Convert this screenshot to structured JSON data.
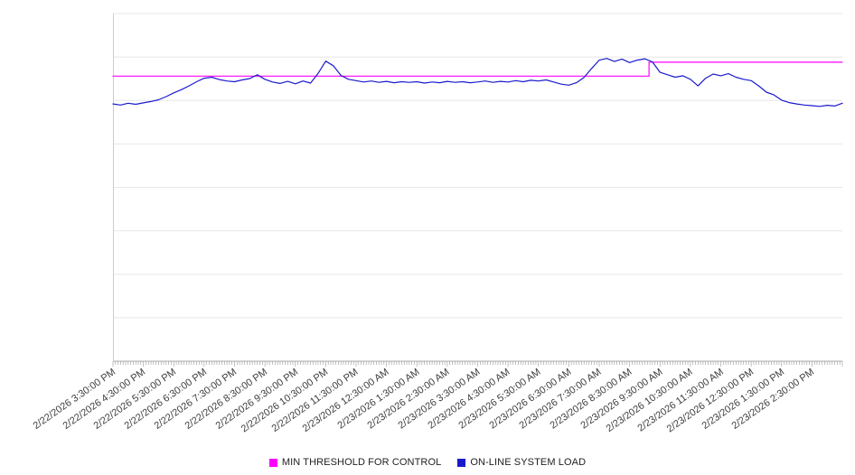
{
  "legend": {
    "items": [
      {
        "label": "MIN THRESHOLD FOR CONTROL",
        "color": "#ff00ff"
      },
      {
        "label": "ON-LINE SYSTEM LOAD",
        "color": "#1a1acd"
      }
    ]
  },
  "chart_data": {
    "type": "line",
    "title": "",
    "xlabel": "",
    "ylabel": "",
    "ylim": [
      0,
      100
    ],
    "x_hours_span": 24,
    "gridlines": 9,
    "grid_color": "#e8e8e8",
    "axis_color": "#aaaaaa",
    "tick_color": "#999999",
    "categories": [
      "2/22/2026 3:30:00 PM",
      "2/22/2026 4:30:00 PM",
      "2/22/2026 5:30:00 PM",
      "2/22/2026 6:30:00 PM",
      "2/22/2026 7:30:00 PM",
      "2/22/2026 8:30:00 PM",
      "2/22/2026 9:30:00 PM",
      "2/22/2026 10:30:00 PM",
      "2/22/2026 11:30:00 PM",
      "2/23/2026 12:30:00 AM",
      "2/23/2026 1:30:00 AM",
      "2/23/2026 2:30:00 AM",
      "2/23/2026 3:30:00 AM",
      "2/23/2026 4:30:00 AM",
      "2/23/2026 5:30:00 AM",
      "2/23/2026 6:30:00 AM",
      "2/23/2026 7:30:00 AM",
      "2/23/2026 8:30:00 AM",
      "2/23/2026 9:30:00 AM",
      "2/23/2026 10:30:00 AM",
      "2/23/2026 11:30:00 AM",
      "2/23/2026 12:30:00 PM",
      "2/23/2026 1:30:00 PM",
      "2/23/2026 2:30:00 PM"
    ],
    "series": [
      {
        "name": "MIN THRESHOLD FOR CONTROL",
        "data_name": "min-threshold-line",
        "color": "#ff00ff",
        "step": true,
        "points": [
          [
            0,
            82
          ],
          [
            17.64,
            82
          ],
          [
            17.64,
            86
          ],
          [
            24,
            86
          ]
        ]
      },
      {
        "name": "ON-LINE SYSTEM LOAD",
        "data_name": "system-load-line",
        "color": "#1a1acd",
        "interval_hours": 0.25,
        "values": [
          74.0,
          73.7,
          74.2,
          73.9,
          74.3,
          74.7,
          75.2,
          76.1,
          77.2,
          78.1,
          79.2,
          80.4,
          81.4,
          81.7,
          81.0,
          80.6,
          80.4,
          80.9,
          81.3,
          82.4,
          81.1,
          80.3,
          79.9,
          80.5,
          79.8,
          80.6,
          80.0,
          82.8,
          86.3,
          85.0,
          82.2,
          81.1,
          80.7,
          80.3,
          80.6,
          80.2,
          80.5,
          80.1,
          80.4,
          80.2,
          80.4,
          80.0,
          80.3,
          80.1,
          80.5,
          80.2,
          80.4,
          80.1,
          80.3,
          80.6,
          80.2,
          80.5,
          80.3,
          80.7,
          80.4,
          80.8,
          80.6,
          80.9,
          80.3,
          79.7,
          79.4,
          80.1,
          81.6,
          84.2,
          86.6,
          87.1,
          86.2,
          86.9,
          85.9,
          86.6,
          87.0,
          86.1,
          83.1,
          82.4,
          81.7,
          82.1,
          81.1,
          79.2,
          81.4,
          82.6,
          82.1,
          82.7,
          81.7,
          81.1,
          80.7,
          79.2,
          77.4,
          76.6,
          75.1,
          74.4,
          74.0,
          73.7,
          73.5,
          73.3,
          73.6,
          73.4,
          74.2
        ]
      }
    ]
  }
}
